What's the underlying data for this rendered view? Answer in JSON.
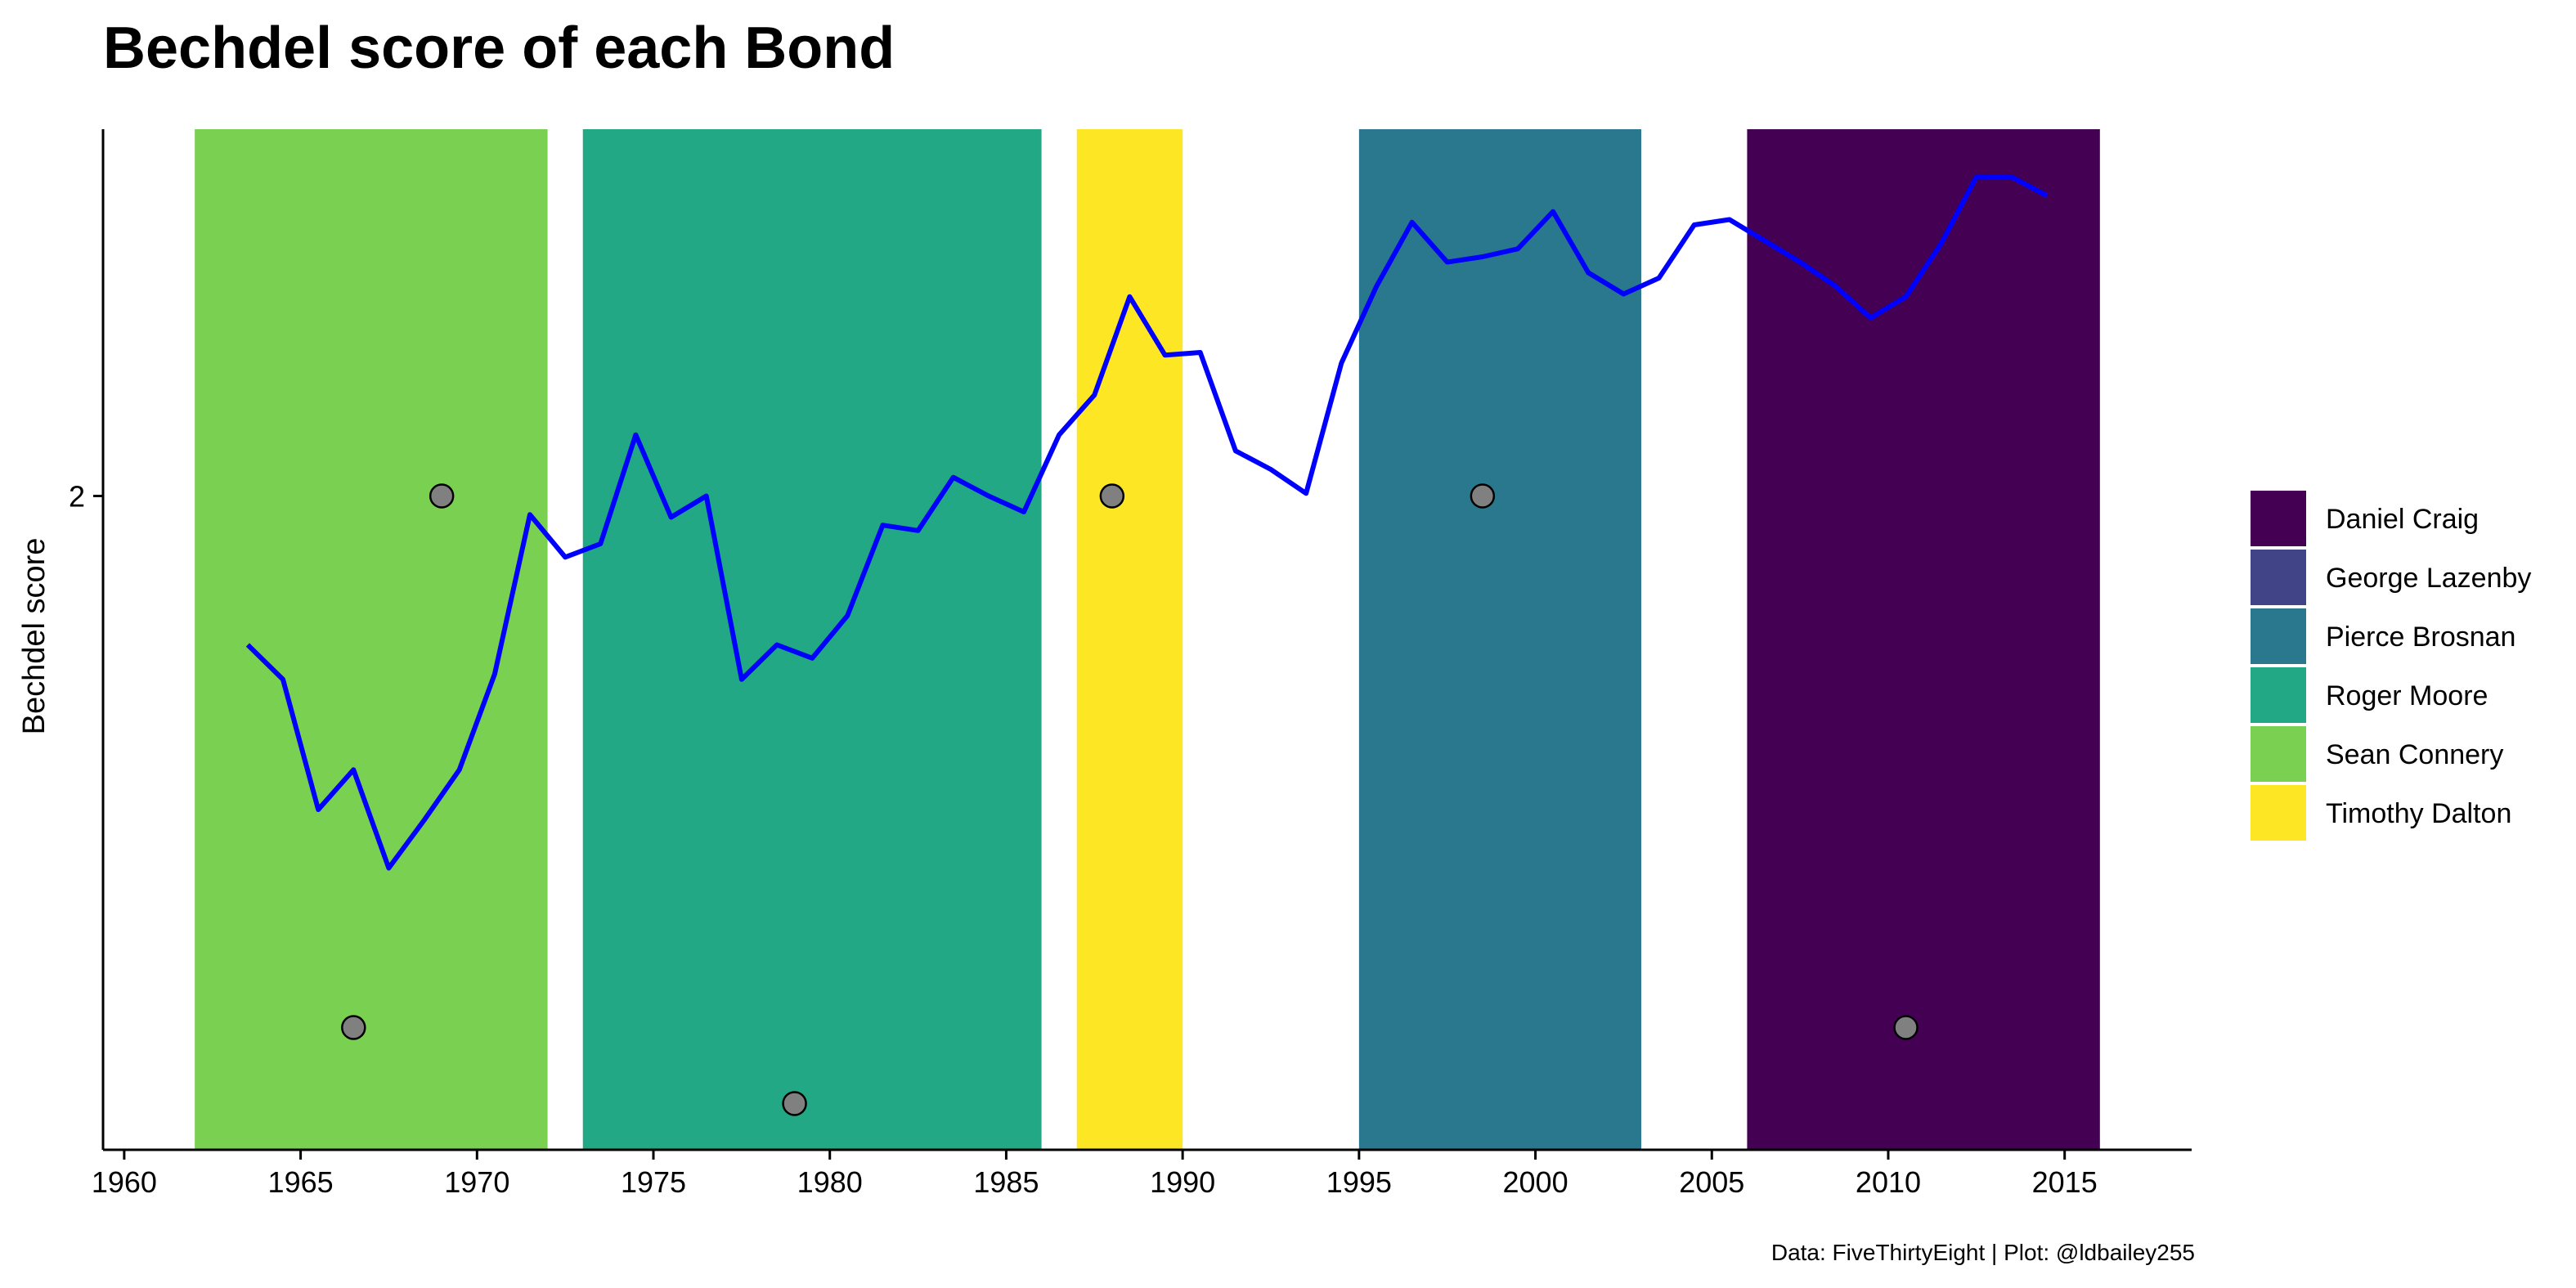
{
  "chart_data": {
    "type": "line",
    "title": "Bechdel score of each Bond",
    "ylabel": "Bechdel score",
    "xlabel": "",
    "caption": "Data: FiveThirtyEight | Plot: @ldbailey255",
    "xlim": [
      1959.4,
      2018.6
    ],
    "ylim": [
      0.77,
      2.69
    ],
    "x_ticks": [
      1960,
      1965,
      1970,
      1975,
      1980,
      1985,
      1990,
      1995,
      2000,
      2005,
      2010,
      2015
    ],
    "y_ticks": [
      2
    ],
    "grid": false,
    "legend_position": "right",
    "legend": [
      {
        "name": "Daniel Craig",
        "color": "#440154"
      },
      {
        "name": "George Lazenby",
        "color": "#414487"
      },
      {
        "name": "Pierce Brosnan",
        "color": "#2A788E"
      },
      {
        "name": "Roger Moore",
        "color": "#22A884"
      },
      {
        "name": "Sean Connery",
        "color": "#7AD151"
      },
      {
        "name": "Timothy Dalton",
        "color": "#FDE725"
      }
    ],
    "eras": [
      {
        "actor": "Sean Connery",
        "start": 1962,
        "end": 1972,
        "color": "#7AD151"
      },
      {
        "actor": "Roger Moore",
        "start": 1973,
        "end": 1986,
        "color": "#22A884"
      },
      {
        "actor": "Timothy Dalton",
        "start": 1987,
        "end": 1990,
        "color": "#FDE725"
      },
      {
        "actor": "Pierce Brosnan",
        "start": 1995,
        "end": 2003,
        "color": "#2A788E"
      },
      {
        "actor": "Daniel Craig",
        "start": 2006,
        "end": 2016,
        "color": "#440154"
      }
    ],
    "points": [
      {
        "x": 1966.5,
        "y": 1.0
      },
      {
        "x": 1969.0,
        "y": 2.0
      },
      {
        "x": 1979.0,
        "y": 0.857
      },
      {
        "x": 1988.0,
        "y": 2.0
      },
      {
        "x": 1998.5,
        "y": 2.0
      },
      {
        "x": 2010.5,
        "y": 1.0
      }
    ],
    "series": [
      {
        "color": "#0000FF",
        "x": [
          1963.5,
          1964.5,
          1965.5,
          1966.5,
          1967.5,
          1968.5,
          1969.5,
          1970.5,
          1971.5,
          1972.5,
          1973.5,
          1974.5,
          1975.5,
          1976.5,
          1977.5,
          1978.5,
          1979.5,
          1980.5,
          1981.5,
          1982.5,
          1983.5,
          1984.5,
          1985.5,
          1986.5,
          1987.5,
          1988.5,
          1989.5,
          1990.5,
          1991.5,
          1992.5,
          1993.5,
          1994.5,
          1995.5,
          1996.5,
          1997.5,
          1998.5,
          1999.5,
          2000.5,
          2001.5,
          2002.5,
          2003.5,
          2004.5,
          2005.5,
          2006.5,
          2007.5,
          2008.5,
          2009.5,
          2010.5,
          2011.5,
          2012.5,
          2013.5,
          2014.5
        ],
        "y": [
          1.72,
          1.655,
          1.41,
          1.485,
          1.3,
          1.39,
          1.485,
          1.665,
          1.965,
          1.885,
          1.91,
          2.115,
          1.96,
          2.0,
          1.655,
          1.72,
          1.695,
          1.775,
          1.945,
          1.935,
          2.035,
          2.0,
          1.97,
          2.115,
          2.19,
          2.375,
          2.265,
          2.27,
          2.085,
          2.05,
          2.005,
          2.25,
          2.395,
          2.515,
          2.44,
          2.45,
          2.465,
          2.535,
          2.42,
          2.38,
          2.41,
          2.51,
          2.52,
          2.48,
          2.44,
          2.395,
          2.335,
          2.375,
          2.475,
          2.6,
          2.6,
          2.565
        ]
      }
    ]
  }
}
